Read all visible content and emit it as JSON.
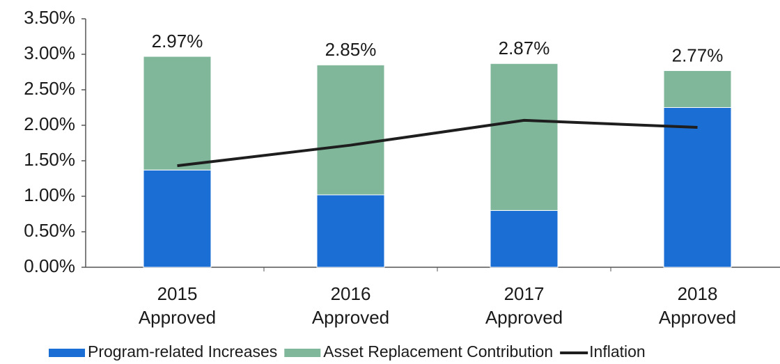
{
  "chart_data": {
    "type": "stacked_bar_line",
    "categories": [
      "2015 Approved",
      "2016 Approved",
      "2017 Approved",
      "2018 Approved"
    ],
    "series": [
      {
        "name": "Program-related Increases",
        "color": "#1b6fd4",
        "values": [
          1.37,
          1.02,
          0.8,
          2.25
        ]
      },
      {
        "name": "Asset Replacement Contribution",
        "color": "#80b79b",
        "values": [
          1.6,
          1.83,
          2.07,
          0.52
        ]
      },
      {
        "name": "Inflation",
        "color": "#1e1e1e",
        "type": "line",
        "values": [
          1.43,
          1.72,
          2.07,
          1.97
        ]
      }
    ],
    "totals": [
      2.97,
      2.85,
      2.87,
      2.77
    ],
    "total_labels": [
      "2.97%",
      "2.85%",
      "2.87%",
      "2.77%"
    ],
    "ylim": [
      0,
      3.5
    ],
    "yticks": [
      {
        "value": 0,
        "label": "0.00%"
      },
      {
        "value": 0.5,
        "label": "0.50%"
      },
      {
        "value": 1,
        "label": "1.00%"
      },
      {
        "value": 1.5,
        "label": "1.50%"
      },
      {
        "value": 2,
        "label": "2.00%"
      },
      {
        "value": 2.5,
        "label": "2.50%"
      },
      {
        "value": 3,
        "label": "3.00%"
      },
      {
        "value": 3.5,
        "label": "3.50%"
      }
    ],
    "grid": false
  }
}
